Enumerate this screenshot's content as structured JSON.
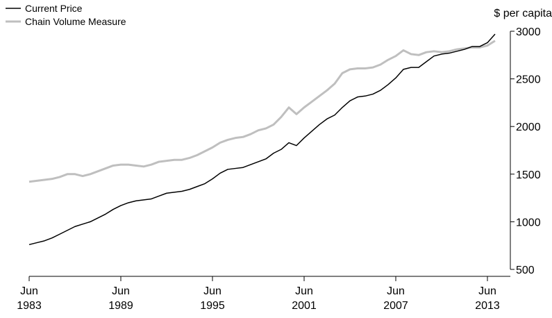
{
  "chart_data": {
    "type": "line",
    "y_label": "$ per capita",
    "categories": [
      "Jun 1983",
      "Dec 1983",
      "Jun 1984",
      "Dec 1984",
      "Jun 1985",
      "Dec 1985",
      "Jun 1986",
      "Dec 1986",
      "Jun 1987",
      "Dec 1987",
      "Jun 1988",
      "Dec 1988",
      "Jun 1989",
      "Dec 1989",
      "Jun 1990",
      "Dec 1990",
      "Jun 1991",
      "Dec 1991",
      "Jun 1992",
      "Dec 1992",
      "Jun 1993",
      "Dec 1993",
      "Jun 1994",
      "Dec 1994",
      "Jun 1995",
      "Dec 1995",
      "Jun 1996",
      "Dec 1996",
      "Jun 1997",
      "Dec 1997",
      "Jun 1998",
      "Dec 1998",
      "Jun 1999",
      "Dec 1999",
      "Jun 2000",
      "Dec 2000",
      "Jun 2001",
      "Dec 2001",
      "Jun 2002",
      "Dec 2002",
      "Jun 2003",
      "Dec 2003",
      "Jun 2004",
      "Dec 2004",
      "Jun 2005",
      "Dec 2005",
      "Jun 2006",
      "Dec 2006",
      "Jun 2007",
      "Dec 2007",
      "Jun 2008",
      "Dec 2008",
      "Jun 2009",
      "Dec 2009",
      "Jun 2010",
      "Dec 2010",
      "Jun 2011",
      "Dec 2011",
      "Jun 2012",
      "Dec 2012",
      "Jun 2013",
      "Dec 2013"
    ],
    "series": [
      {
        "name": "Current Price",
        "color": "#000000",
        "values": [
          760,
          780,
          800,
          830,
          870,
          910,
          950,
          975,
          1000,
          1040,
          1080,
          1130,
          1170,
          1200,
          1220,
          1230,
          1240,
          1270,
          1300,
          1310,
          1320,
          1340,
          1370,
          1400,
          1450,
          1510,
          1550,
          1560,
          1570,
          1600,
          1630,
          1660,
          1720,
          1760,
          1830,
          1800,
          1880,
          1950,
          2020,
          2080,
          2120,
          2200,
          2270,
          2310,
          2320,
          2340,
          2380,
          2440,
          2510,
          2600,
          2620,
          2620,
          2680,
          2740,
          2760,
          2770,
          2790,
          2810,
          2840,
          2840,
          2880,
          2970
        ]
      },
      {
        "name": "Chain Volume Measure",
        "color": "#bfbfbf",
        "values": [
          1420,
          1430,
          1440,
          1450,
          1470,
          1500,
          1500,
          1480,
          1500,
          1530,
          1560,
          1590,
          1600,
          1600,
          1590,
          1580,
          1600,
          1630,
          1640,
          1650,
          1650,
          1670,
          1700,
          1740,
          1780,
          1830,
          1860,
          1880,
          1890,
          1920,
          1960,
          1980,
          2020,
          2100,
          2200,
          2130,
          2200,
          2260,
          2320,
          2380,
          2450,
          2560,
          2600,
          2610,
          2610,
          2620,
          2650,
          2700,
          2740,
          2800,
          2760,
          2750,
          2780,
          2790,
          2780,
          2790,
          2810,
          2820,
          2830,
          2830,
          2850,
          2900
        ]
      }
    ],
    "xticks": [
      "Jun 1983",
      "Jun 1989",
      "Jun 1995",
      "Jun 2001",
      "Jun 2007",
      "Jun 2013"
    ],
    "ylim": [
      500,
      3000
    ],
    "yticks": [
      500,
      1000,
      1500,
      2000,
      2500,
      3000
    ],
    "grid": false,
    "legend": "top-left"
  }
}
